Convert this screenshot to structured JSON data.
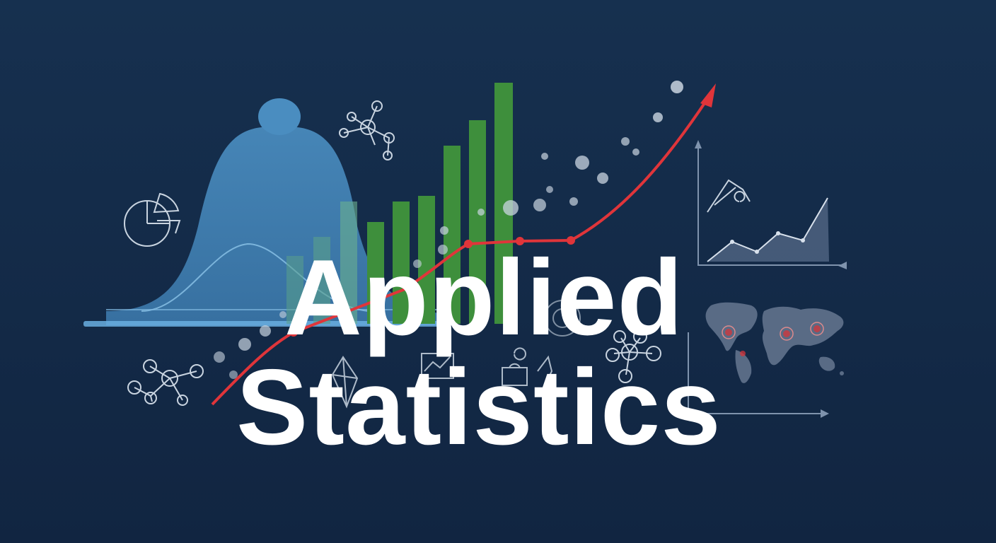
{
  "title": {
    "line1": "Applied",
    "line2": "Statistics"
  },
  "colors": {
    "background": "#142a47",
    "bell_curve": "#3f7fb2",
    "bars": "#3e8f3c",
    "trend_line": "#e0353a",
    "line_art": "#c9d4e0",
    "text": "#ffffff"
  },
  "icons": [
    "bell-curve-graphic",
    "bar-chart-graphic",
    "trend-arrow-graphic",
    "pie-chart-icon",
    "network-icon",
    "area-chart-icon",
    "world-map-icon",
    "molecule-icon"
  ]
}
